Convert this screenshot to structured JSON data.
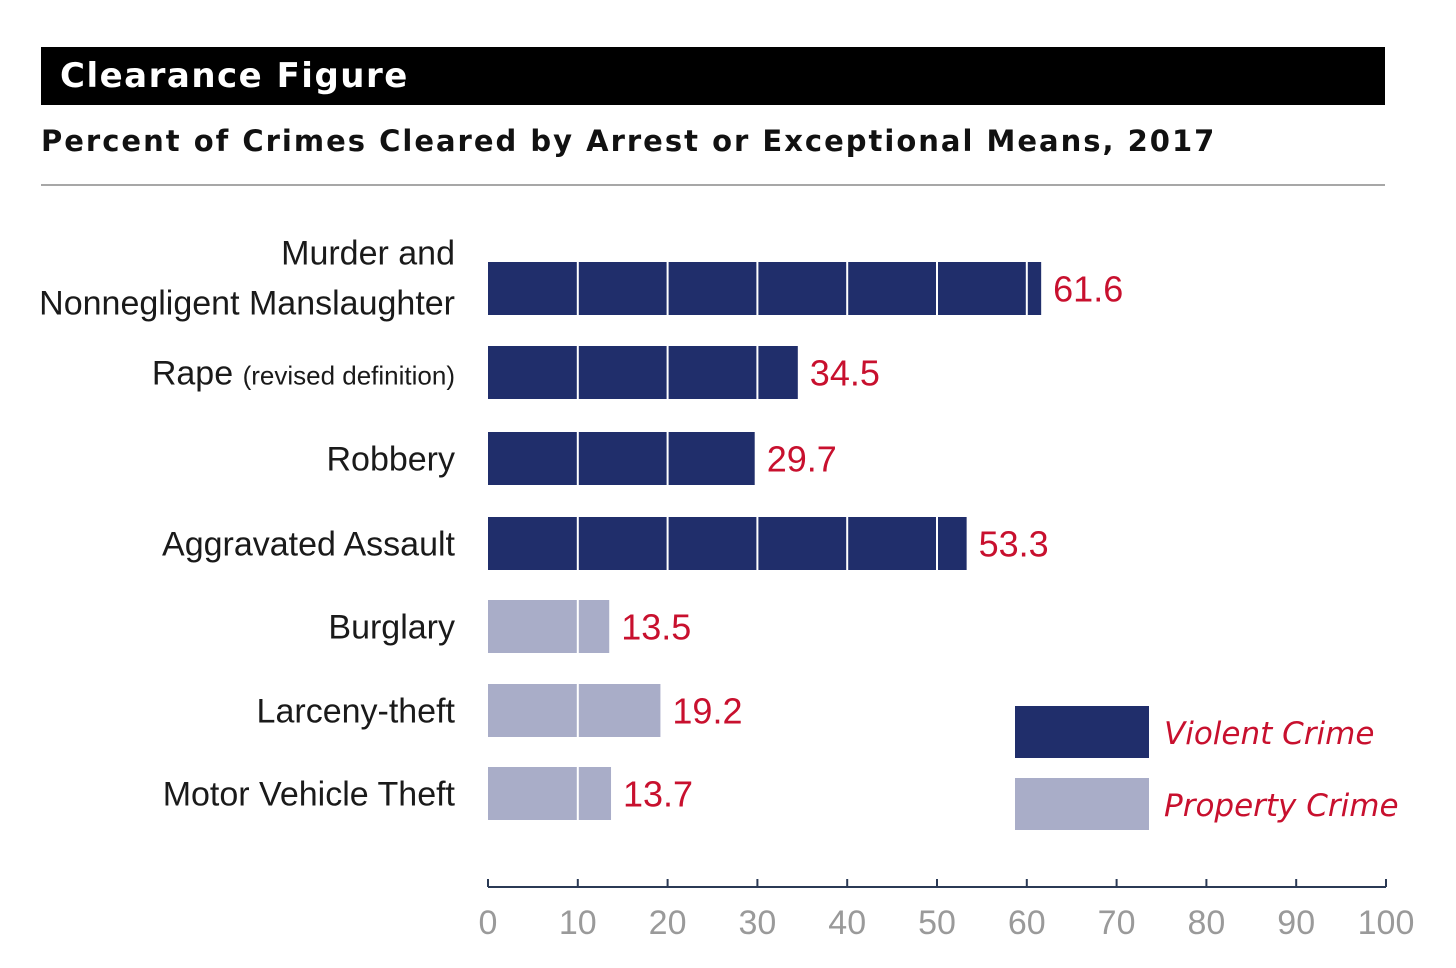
{
  "chart_data": {
    "type": "bar",
    "orientation": "horizontal",
    "title": "Clearance Figure",
    "subtitle": "Percent of Crimes Cleared by Arrest or Exceptional Means, 2017",
    "categories": [
      {
        "lines": [
          "Murder and",
          "Nonnegligent Manslaughter"
        ]
      },
      {
        "lines": [
          "Rape"
        ],
        "suffix": "(revised definition)"
      },
      {
        "lines": [
          "Robbery"
        ]
      },
      {
        "lines": [
          "Aggravated Assault"
        ]
      },
      {
        "lines": [
          "Burglary"
        ]
      },
      {
        "lines": [
          "Larceny-theft"
        ]
      },
      {
        "lines": [
          "Motor Vehicle Theft"
        ]
      }
    ],
    "values": [
      61.6,
      34.5,
      29.7,
      53.3,
      13.5,
      19.2,
      13.7
    ],
    "value_labels": [
      "61.6",
      "34.5",
      "29.7",
      "53.3",
      "13.5",
      "19.2",
      "13.7"
    ],
    "groups": [
      "Violent Crime",
      "Violent Crime",
      "Violent Crime",
      "Violent Crime",
      "Property Crime",
      "Property Crime",
      "Property Crime"
    ],
    "legend": [
      {
        "name": "Violent Crime",
        "color": "#202e6b"
      },
      {
        "name": "Property Crime",
        "color": "#a9adc8"
      }
    ],
    "legend_position": "bottom-right",
    "xlim": [
      0,
      100
    ],
    "xticks": [
      0,
      10,
      20,
      30,
      40,
      50,
      60,
      70,
      80,
      90,
      100
    ],
    "xtick_labels": [
      "0",
      "10",
      "20",
      "30",
      "40",
      "50",
      "60",
      "70",
      "80",
      "90",
      "100"
    ],
    "grid": "vertical white lines at each 10 within bars",
    "value_label_color": "#c8102e"
  }
}
